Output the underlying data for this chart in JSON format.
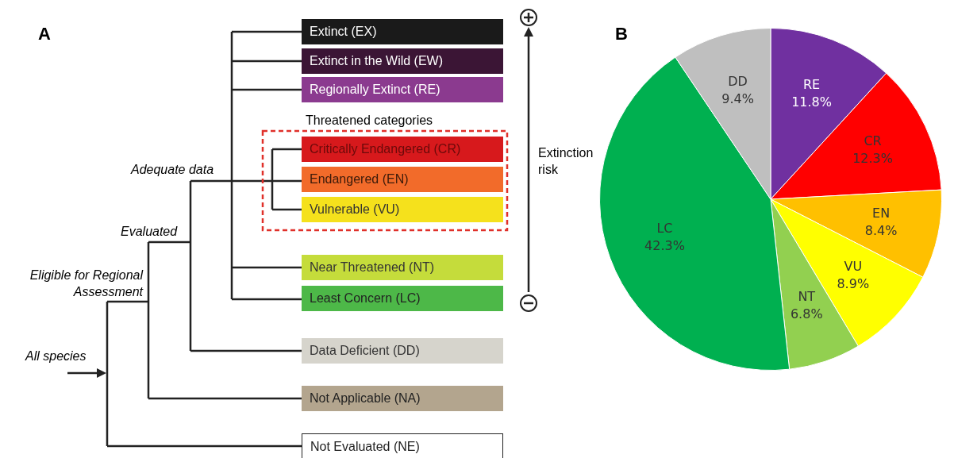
{
  "chart_data": [
    {
      "type": "other",
      "title": "A",
      "annotations": [
        "Extinct (EX)",
        "Extinct in the Wild (EW)",
        "Regionally Extinct (RE)",
        "Threatened categories",
        "Critically Endangered (CR)",
        "Endangered (EN)",
        "Vulnerable (VU)",
        "Near Threatened (NT)",
        "Least Concern (LC)",
        "Data Deficient (DD)",
        "Not Applicable (NA)",
        "Not Evaluated (NE)",
        "Extinction risk",
        "Adequate data",
        "Evaluated",
        "Eligible for Regional Assessment",
        "All species"
      ]
    },
    {
      "type": "pie",
      "title": "B",
      "categories": [
        "RE",
        "CR",
        "EN",
        "VU",
        "NT",
        "LC",
        "DD"
      ],
      "values": [
        11.8,
        12.3,
        8.4,
        8.9,
        6.8,
        42.3,
        9.4
      ],
      "colors": [
        "#7030a0",
        "#ff0000",
        "#ffc000",
        "#ffff00",
        "#92d050",
        "#00b050",
        "#bfbfbf"
      ],
      "value_labels": [
        "11.8%",
        "12.3%",
        "8.4%",
        "8.9%",
        "6.8%",
        "42.3%",
        "9.4%"
      ]
    }
  ]
}
